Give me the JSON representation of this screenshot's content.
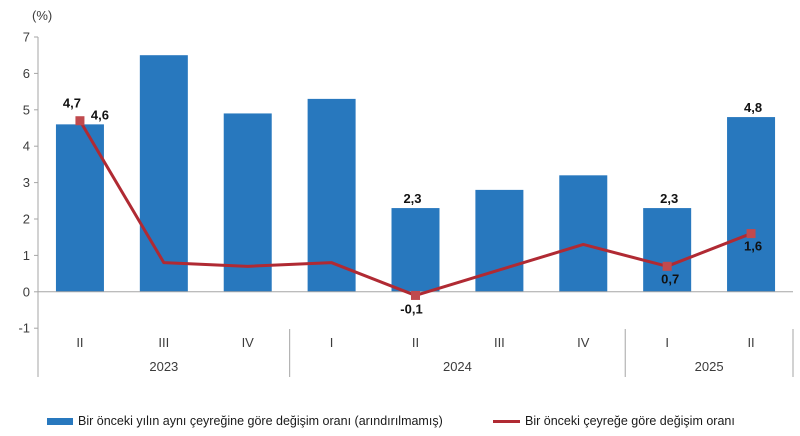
{
  "colors": {
    "bar": "#2878BE",
    "line": "#B02A33",
    "marker": "#C04A4E",
    "axis": "#A6A6A6",
    "tick_text": "#3C3C3C",
    "label_text": "#111111"
  },
  "chart_data": {
    "type": "bar+line",
    "title": "",
    "unit": "(%)",
    "ylim": [
      -1,
      7
    ],
    "yticks": [
      7,
      6,
      5,
      4,
      3,
      2,
      1,
      0,
      -1
    ],
    "categories": [
      "II",
      "III",
      "IV",
      "I",
      "II",
      "III",
      "IV",
      "I",
      "II"
    ],
    "year_groups": [
      {
        "label": "2023",
        "span": 3
      },
      {
        "label": "2024",
        "span": 4
      },
      {
        "label": "2025",
        "span": 2
      }
    ],
    "grid": false,
    "legend_position": "bottom",
    "series": [
      {
        "name": "Bir önceki yılın aynı çeyreğine göre değişim oranı (arındırılmamış)",
        "type": "bar",
        "values": [
          4.6,
          6.5,
          4.9,
          5.3,
          2.3,
          2.8,
          3.2,
          2.3,
          4.8
        ],
        "labels": [
          "4,6",
          null,
          null,
          null,
          "2,3",
          null,
          null,
          "2,3",
          "4,8"
        ],
        "label_offsets": [
          [
            20,
            0
          ],
          null,
          null,
          null,
          [
            -3,
            0
          ],
          null,
          null,
          [
            2,
            0
          ],
          [
            2,
            0
          ]
        ]
      },
      {
        "name": "Bir önceki çeyreğe göre değişim oranı",
        "type": "line",
        "values": [
          4.7,
          0.8,
          0.7,
          0.8,
          -0.1,
          0.6,
          1.3,
          0.7,
          1.6
        ],
        "labels": [
          "4,7",
          null,
          null,
          null,
          "-0,1",
          null,
          null,
          "0,7",
          "1,6"
        ],
        "label_offsets": [
          [
            -8,
            -13
          ],
          null,
          null,
          null,
          [
            -4,
            18
          ],
          null,
          null,
          [
            3,
            17
          ],
          [
            2,
            17
          ]
        ]
      }
    ]
  }
}
